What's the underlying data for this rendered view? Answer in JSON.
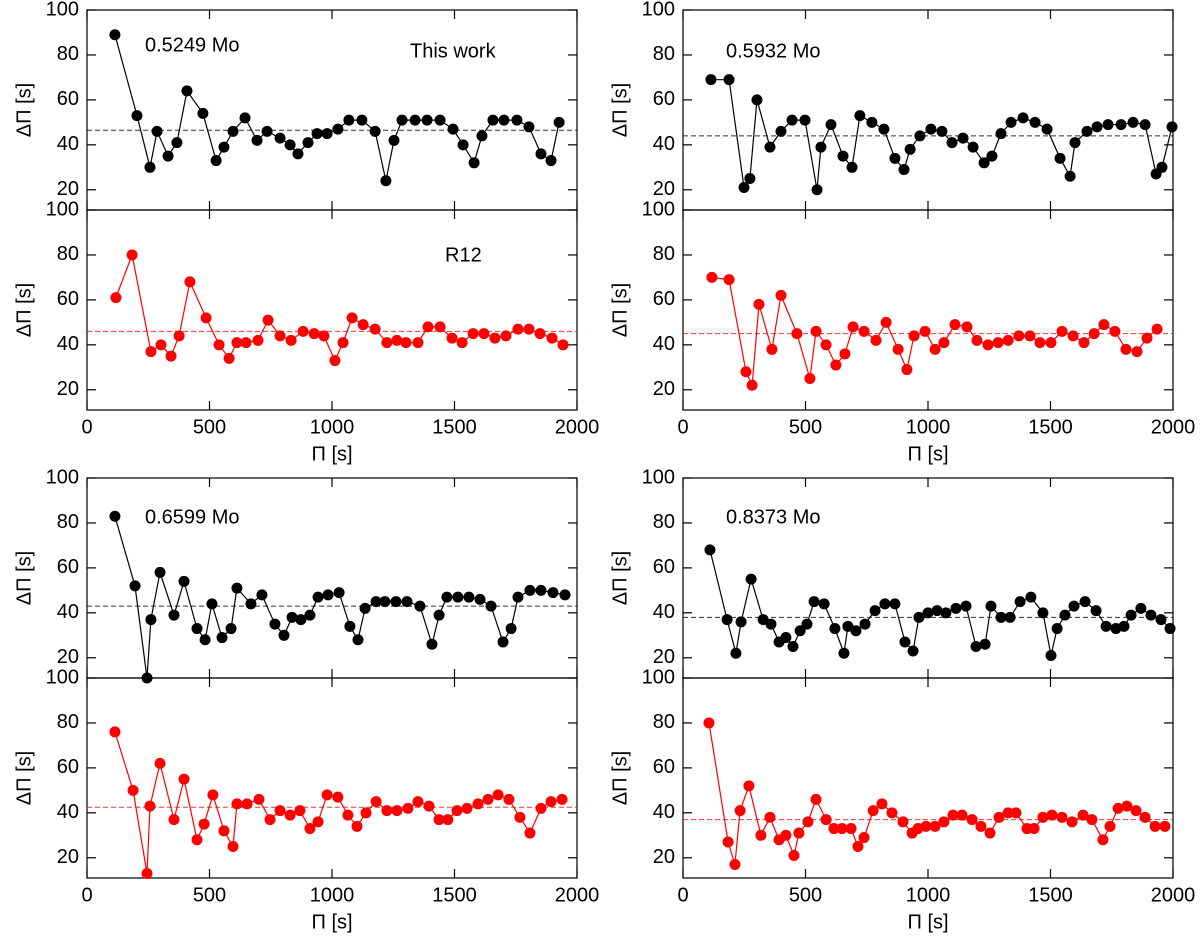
{
  "chart_data": [
    {
      "type": "line",
      "color": "#000000",
      "ylabel": "ΔΠ [s]",
      "annotations": [
        "0.5249 Mo",
        "This work"
      ],
      "reference_line": 46.5,
      "show_xtick_labels": false,
      "xlim": [
        0,
        2000
      ],
      "xticks": [
        0,
        500,
        1000,
        1500,
        2000
      ],
      "ylim": [
        11,
        100
      ],
      "yticks": [
        20,
        40,
        60,
        80,
        100
      ],
      "x": [
        114,
        204,
        257,
        286,
        331,
        367,
        408,
        473,
        527,
        559,
        596,
        645,
        694,
        735,
        788,
        829,
        861,
        902,
        939,
        980,
        1024,
        1069,
        1122,
        1176,
        1220,
        1253,
        1286,
        1339,
        1388,
        1441,
        1494,
        1535,
        1580,
        1612,
        1657,
        1702,
        1755,
        1804,
        1853,
        1894,
        1927
      ],
      "values": [
        89,
        53,
        30,
        46,
        35,
        41,
        64,
        54,
        33,
        39,
        46,
        52,
        42,
        46,
        43,
        40,
        36,
        41,
        45,
        45,
        47,
        51,
        51,
        46,
        24,
        42,
        51,
        51,
        51,
        51,
        47,
        40,
        32,
        44,
        51,
        51,
        51,
        48,
        36,
        33,
        50
      ]
    },
    {
      "type": "line",
      "color": "#ff0000",
      "ylabel": "ΔΠ [s]",
      "xlabel": "Π [s]",
      "annotations": [
        "R12"
      ],
      "reference_line": 46,
      "show_xtick_labels": true,
      "xlim": [
        0,
        2000
      ],
      "xticks": [
        0,
        500,
        1000,
        1500,
        2000
      ],
      "ylim": [
        11,
        100
      ],
      "yticks": [
        20,
        40,
        60,
        80,
        100
      ],
      "x": [
        118,
        184,
        261,
        302,
        343,
        376,
        420,
        486,
        539,
        580,
        612,
        649,
        698,
        739,
        788,
        833,
        882,
        927,
        967,
        1012,
        1045,
        1082,
        1127,
        1176,
        1224,
        1265,
        1302,
        1351,
        1392,
        1441,
        1490,
        1531,
        1576,
        1620,
        1665,
        1710,
        1759,
        1804,
        1849,
        1898,
        1943
      ],
      "values": [
        61,
        80,
        37,
        40,
        35,
        44,
        68,
        52,
        40,
        34,
        41,
        41,
        42,
        51,
        44,
        42,
        46,
        45,
        44,
        33,
        41,
        52,
        49,
        47,
        41,
        42,
        41,
        41,
        48,
        48,
        43,
        41,
        45,
        45,
        43,
        44,
        47,
        47,
        45,
        43,
        40
      ]
    },
    {
      "type": "line",
      "color": "#000000",
      "ylabel": "ΔΠ [s]",
      "annotations": [
        "0.5932 Mo"
      ],
      "reference_line": 44,
      "show_xtick_labels": false,
      "xlim": [
        0,
        2000
      ],
      "xticks": [
        0,
        500,
        1000,
        1500,
        2000
      ],
      "ylim": [
        11,
        100
      ],
      "yticks": [
        20,
        40,
        60,
        80,
        100
      ],
      "x": [
        114,
        188,
        249,
        273,
        302,
        355,
        400,
        445,
        498,
        547,
        563,
        604,
        653,
        690,
        722,
        771,
        820,
        865,
        902,
        927,
        967,
        1012,
        1057,
        1098,
        1143,
        1184,
        1229,
        1261,
        1298,
        1339,
        1388,
        1437,
        1486,
        1539,
        1580,
        1600,
        1649,
        1690,
        1735,
        1788,
        1837,
        1886,
        1931,
        1955,
        1996
      ],
      "values": [
        69,
        69,
        21,
        25,
        60,
        39,
        46,
        51,
        51,
        20,
        39,
        49,
        35,
        30,
        53,
        50,
        47,
        34,
        29,
        38,
        44,
        47,
        46,
        41,
        43,
        39,
        32,
        35,
        45,
        50,
        52,
        50,
        47,
        34,
        26,
        41,
        46,
        48,
        49,
        49,
        50,
        49,
        27,
        30,
        48
      ]
    },
    {
      "type": "line",
      "color": "#ff0000",
      "ylabel": "ΔΠ [s]",
      "xlabel": "Π [s]",
      "annotations": [],
      "reference_line": 45,
      "show_xtick_labels": true,
      "xlim": [
        0,
        2000
      ],
      "xticks": [
        0,
        500,
        1000,
        1500,
        2000
      ],
      "ylim": [
        11,
        100
      ],
      "yticks": [
        20,
        40,
        60,
        80,
        100
      ],
      "x": [
        118,
        188,
        257,
        282,
        310,
        363,
        400,
        465,
        518,
        543,
        584,
        624,
        661,
        694,
        739,
        788,
        829,
        878,
        914,
        943,
        988,
        1029,
        1065,
        1110,
        1159,
        1200,
        1245,
        1286,
        1327,
        1371,
        1416,
        1457,
        1502,
        1547,
        1592,
        1637,
        1678,
        1718,
        1763,
        1808,
        1853,
        1894,
        1935
      ],
      "values": [
        70,
        69,
        28,
        22,
        58,
        38,
        62,
        45,
        25,
        46,
        40,
        31,
        36,
        48,
        46,
        42,
        50,
        38,
        29,
        44,
        46,
        38,
        41,
        49,
        48,
        42,
        40,
        41,
        42,
        44,
        44,
        41,
        41,
        46,
        44,
        41,
        45,
        49,
        46,
        38,
        37,
        43,
        47
      ]
    },
    {
      "type": "line",
      "color": "#000000",
      "ylabel": "ΔΠ [s]",
      "annotations": [
        "0.6599 Mo"
      ],
      "reference_line": 43,
      "show_xtick_labels": false,
      "xlim": [
        0,
        2000
      ],
      "xticks": [
        0,
        500,
        1000,
        1500,
        2000
      ],
      "ylim": [
        11,
        100
      ],
      "yticks": [
        20,
        40,
        60,
        80,
        100
      ],
      "x": [
        114,
        196,
        245,
        261,
        298,
        355,
        396,
        449,
        482,
        510,
        551,
        588,
        612,
        669,
        714,
        767,
        804,
        837,
        873,
        910,
        943,
        984,
        1029,
        1073,
        1106,
        1135,
        1180,
        1216,
        1261,
        1306,
        1359,
        1408,
        1437,
        1469,
        1514,
        1559,
        1604,
        1649,
        1698,
        1731,
        1759,
        1808,
        1853,
        1902,
        1951
      ],
      "values": [
        83,
        52,
        11,
        37,
        58,
        39,
        54,
        33,
        28,
        44,
        29,
        33,
        51,
        44,
        48,
        35,
        30,
        38,
        37,
        39,
        47,
        48,
        49,
        34,
        28,
        42,
        45,
        45,
        45,
        45,
        43,
        26,
        39,
        47,
        47,
        47,
        46,
        43,
        27,
        33,
        47,
        50,
        50,
        49,
        48
      ]
    },
    {
      "type": "line",
      "color": "#ff0000",
      "ylabel": "ΔΠ [s]",
      "xlabel": "Π [s]",
      "annotations": [],
      "reference_line": 42.5,
      "show_xtick_labels": true,
      "xlim": [
        0,
        2000
      ],
      "xticks": [
        0,
        500,
        1000,
        1500,
        2000
      ],
      "ylim": [
        11,
        100
      ],
      "yticks": [
        20,
        40,
        60,
        80,
        100
      ],
      "x": [
        114,
        188,
        245,
        257,
        298,
        355,
        396,
        449,
        478,
        514,
        559,
        596,
        612,
        653,
        702,
        747,
        788,
        829,
        869,
        910,
        943,
        980,
        1024,
        1065,
        1102,
        1139,
        1180,
        1224,
        1265,
        1310,
        1351,
        1396,
        1437,
        1473,
        1510,
        1551,
        1596,
        1637,
        1678,
        1722,
        1767,
        1808,
        1853,
        1894,
        1939
      ],
      "values": [
        76,
        50,
        13,
        43,
        62,
        37,
        55,
        28,
        35,
        48,
        32,
        25,
        44,
        44,
        46,
        37,
        41,
        39,
        41,
        33,
        36,
        48,
        47,
        39,
        34,
        40,
        45,
        41,
        41,
        42,
        45,
        43,
        37,
        37,
        41,
        42,
        44,
        46,
        48,
        46,
        38,
        31,
        42,
        45,
        46
      ]
    },
    {
      "type": "line",
      "color": "#000000",
      "ylabel": "ΔΠ [s]",
      "annotations": [
        "0.8373 Mo"
      ],
      "reference_line": 38,
      "show_xtick_labels": false,
      "xlim": [
        0,
        2000
      ],
      "xticks": [
        0,
        500,
        1000,
        1500,
        2000
      ],
      "ylim": [
        11,
        100
      ],
      "yticks": [
        20,
        40,
        60,
        80,
        100
      ],
      "x": [
        110,
        180,
        216,
        237,
        278,
        327,
        359,
        392,
        420,
        449,
        478,
        506,
        535,
        576,
        620,
        657,
        673,
        706,
        743,
        784,
        824,
        865,
        906,
        939,
        963,
        1000,
        1037,
        1073,
        1114,
        1155,
        1196,
        1233,
        1257,
        1298,
        1335,
        1376,
        1420,
        1469,
        1502,
        1527,
        1559,
        1596,
        1641,
        1686,
        1727,
        1767,
        1800,
        1829,
        1869,
        1910,
        1951,
        1988
      ],
      "values": [
        68,
        37,
        22,
        36,
        55,
        37,
        35,
        27,
        29,
        25,
        32,
        35,
        45,
        44,
        33,
        22,
        34,
        32,
        35,
        41,
        44,
        44,
        27,
        23,
        38,
        40,
        41,
        40,
        42,
        43,
        25,
        26,
        43,
        38,
        38,
        45,
        47,
        40,
        21,
        33,
        39,
        43,
        45,
        41,
        34,
        33,
        34,
        39,
        42,
        39,
        37,
        33
      ]
    },
    {
      "type": "line",
      "color": "#ff0000",
      "ylabel": "ΔΠ [s]",
      "xlabel": "Π [s]",
      "annotations": [],
      "reference_line": 37,
      "show_xtick_labels": true,
      "xlim": [
        0,
        2000
      ],
      "xticks": [
        0,
        500,
        1000,
        1500,
        2000
      ],
      "ylim": [
        11,
        100
      ],
      "yticks": [
        20,
        40,
        60,
        80,
        100
      ],
      "x": [
        106,
        184,
        212,
        233,
        269,
        318,
        355,
        392,
        420,
        453,
        473,
        510,
        543,
        584,
        616,
        649,
        686,
        714,
        739,
        776,
        812,
        853,
        898,
        935,
        959,
        992,
        1029,
        1065,
        1102,
        1139,
        1180,
        1216,
        1253,
        1290,
        1327,
        1359,
        1404,
        1433,
        1469,
        1506,
        1547,
        1588,
        1633,
        1669,
        1714,
        1743,
        1776,
        1812,
        1849,
        1886,
        1927,
        1967
      ],
      "values": [
        80,
        27,
        17,
        41,
        52,
        30,
        38,
        28,
        30,
        21,
        31,
        36,
        46,
        37,
        33,
        33,
        33,
        25,
        29,
        41,
        44,
        40,
        36,
        31,
        33,
        34,
        34,
        36,
        39,
        39,
        37,
        34,
        31,
        38,
        40,
        40,
        33,
        33,
        38,
        39,
        38,
        36,
        39,
        37,
        28,
        34,
        42,
        43,
        41,
        38,
        34,
        34
      ]
    }
  ]
}
